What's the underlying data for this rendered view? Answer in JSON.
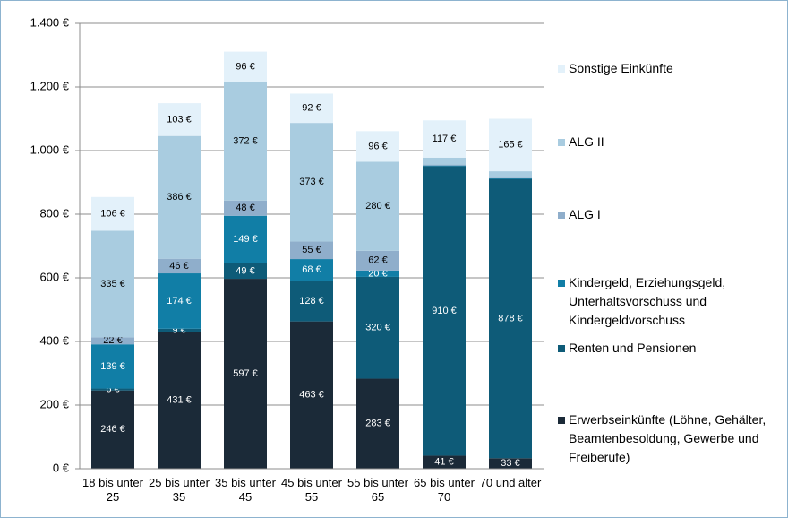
{
  "chart_data": {
    "type": "stacked_bar",
    "categories": [
      "18 bis unter 25",
      "25 bis unter 35",
      "35 bis unter 45",
      "45 bis unter 55",
      "55 bis unter 65",
      "65 bis unter 70",
      "70 und älter"
    ],
    "series": [
      {
        "name": "Erwerbseinkünfte (Löhne, Gehälter, Beamtenbesoldung, Gewerbe und Freiberufe)",
        "color": "#1b2a38",
        "values": [
          246,
          431,
          597,
          463,
          283,
          41,
          33
        ],
        "value_labels": [
          "246 €",
          "431 €",
          "597 €",
          "463 €",
          "283 €",
          "41 €",
          "33 €"
        ]
      },
      {
        "name": "Renten und Pensionen",
        "color": "#0e5b78",
        "values": [
          6,
          9,
          49,
          128,
          320,
          910,
          878
        ],
        "value_labels": [
          "6 €",
          "9 €",
          "49 €",
          "128 €",
          "320 €",
          "910 €",
          "878 €"
        ]
      },
      {
        "name": "Kindergeld, Erziehungsgeld, Unterhaltsvorschuss und Kindergeldvorschuss",
        "color": "#117ea6",
        "values": [
          139,
          174,
          149,
          68,
          20,
          2,
          2
        ],
        "value_labels": [
          "139 €",
          "174 €",
          "149 €",
          "68 €",
          "20 €",
          null,
          null
        ]
      },
      {
        "name": "ALG I",
        "color": "#8faecb",
        "values": [
          22,
          46,
          48,
          55,
          62,
          3,
          2
        ],
        "value_labels": [
          "22 €",
          "46 €",
          "48 €",
          "55 €",
          "62 €",
          null,
          null
        ]
      },
      {
        "name": "ALG II",
        "color": "#a9cce0",
        "values": [
          335,
          386,
          372,
          373,
          280,
          22,
          20
        ],
        "value_labels": [
          "335 €",
          "386 €",
          "372 €",
          "373 €",
          "280 €",
          null,
          null
        ]
      },
      {
        "name": "Sonstige Einkünfte",
        "color": "#e3f1fa",
        "values": [
          106,
          103,
          96,
          92,
          96,
          117,
          165
        ],
        "value_labels": [
          "106 €",
          "103 €",
          "96 €",
          "92 €",
          "96 €",
          "117 €",
          "165 €"
        ]
      }
    ],
    "ylim": [
      0,
      1400
    ],
    "yticks": [
      {
        "value": 0,
        "label": "0 €"
      },
      {
        "value": 200,
        "label": "200 €"
      },
      {
        "value": 400,
        "label": "400 €"
      },
      {
        "value": 600,
        "label": "600 €"
      },
      {
        "value": 800,
        "label": "800 €"
      },
      {
        "value": 1000,
        "label": "1.000 €"
      },
      {
        "value": 1200,
        "label": "1.200 €"
      },
      {
        "value": 1400,
        "label": "1.400 €"
      }
    ],
    "grid": true
  }
}
